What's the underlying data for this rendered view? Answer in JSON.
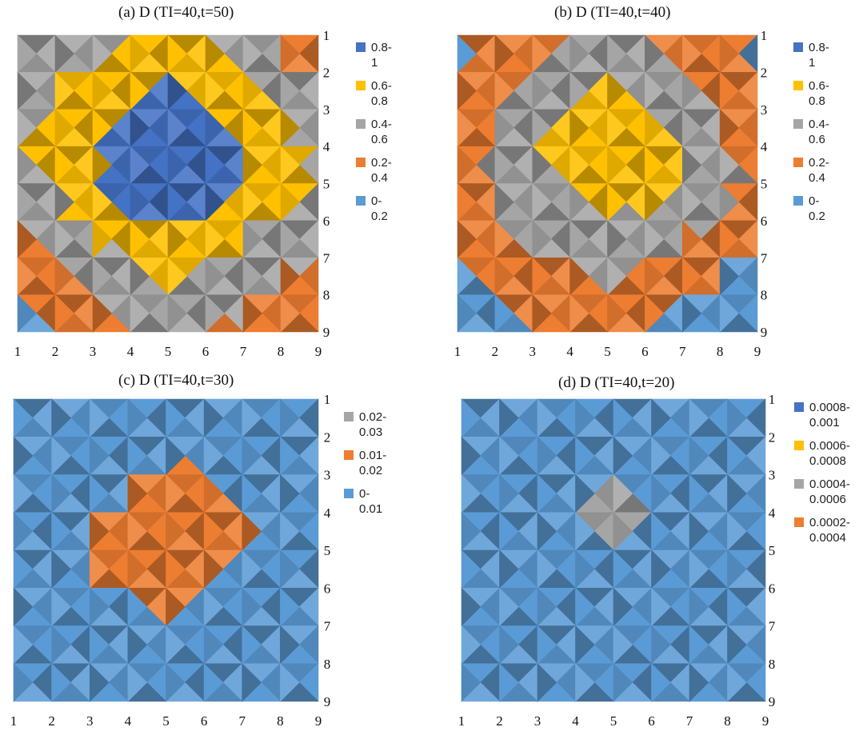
{
  "chart_data": [
    {
      "type": "heatmap",
      "title": "(a) D (TI=40,t=50)",
      "x_ticks": [
        1,
        2,
        3,
        4,
        5,
        6,
        7,
        8,
        9
      ],
      "y_ticks": [
        1,
        2,
        3,
        4,
        5,
        6,
        7,
        8,
        9
      ],
      "legend_position": "right",
      "legend": [
        {
          "label": "0.8-1",
          "color": "#4472C4"
        },
        {
          "label": "0.6-0.8",
          "color": "#FFC000"
        },
        {
          "label": "0.4-0.6",
          "color": "#A5A5A5"
        },
        {
          "label": "0.2-0.4",
          "color": "#ED7D31"
        },
        {
          "label": "0-0.2",
          "color": "#5B9BD5"
        }
      ],
      "bands": [
        {
          "range": "0-0.2",
          "color": "#5B9BD5"
        },
        {
          "range": "0.2-0.4",
          "color": "#ED7D31"
        },
        {
          "range": "0.4-0.6",
          "color": "#A5A5A5"
        },
        {
          "range": "0.6-0.8",
          "color": "#FFC000"
        },
        {
          "range": "0.8-1",
          "color": "#4472C4"
        }
      ],
      "values": [
        [
          0.35,
          0.45,
          0.45,
          0.62,
          0.7,
          0.62,
          0.45,
          0.3,
          0.25
        ],
        [
          0.42,
          0.55,
          0.7,
          0.72,
          0.75,
          0.7,
          0.62,
          0.45,
          0.3
        ],
        [
          0.5,
          0.62,
          0.72,
          0.8,
          0.88,
          0.85,
          0.72,
          0.62,
          0.45
        ],
        [
          0.6,
          0.68,
          0.78,
          0.9,
          0.95,
          0.9,
          0.8,
          0.65,
          0.55
        ],
        [
          0.5,
          0.6,
          0.75,
          0.9,
          0.95,
          0.9,
          0.85,
          0.7,
          0.6
        ],
        [
          0.42,
          0.55,
          0.65,
          0.78,
          0.85,
          0.75,
          0.65,
          0.55,
          0.45
        ],
        [
          0.3,
          0.4,
          0.52,
          0.62,
          0.7,
          0.62,
          0.55,
          0.45,
          0.4
        ],
        [
          0.2,
          0.3,
          0.4,
          0.5,
          0.55,
          0.5,
          0.45,
          0.35,
          0.3
        ],
        [
          0.1,
          0.2,
          0.3,
          0.4,
          0.45,
          0.4,
          0.35,
          0.3,
          0.25
        ]
      ]
    },
    {
      "type": "heatmap",
      "title": "(b) D (TI=40,t=40)",
      "x_ticks": [
        1,
        2,
        3,
        4,
        5,
        6,
        7,
        8,
        9
      ],
      "y_ticks": [
        1,
        2,
        3,
        4,
        5,
        6,
        7,
        8,
        9
      ],
      "legend_position": "right",
      "legend": [
        {
          "label": "0.8-1",
          "color": "#4472C4"
        },
        {
          "label": "0.6-0.8",
          "color": "#FFC000"
        },
        {
          "label": "0.4-0.6",
          "color": "#A5A5A5"
        },
        {
          "label": "0.2-0.4",
          "color": "#ED7D31"
        },
        {
          "label": "0-0.2",
          "color": "#5B9BD5"
        }
      ],
      "bands": [
        {
          "range": "0-0.2",
          "color": "#5B9BD5"
        },
        {
          "range": "0.2-0.4",
          "color": "#ED7D31"
        },
        {
          "range": "0.4-0.6",
          "color": "#A5A5A5"
        },
        {
          "range": "0.6-0.8",
          "color": "#FFC000"
        },
        {
          "range": "0.8-1",
          "color": "#4472C4"
        }
      ],
      "values": [
        [
          0.15,
          0.25,
          0.3,
          0.35,
          0.45,
          0.35,
          0.3,
          0.25,
          0.15
        ],
        [
          0.2,
          0.3,
          0.4,
          0.5,
          0.55,
          0.5,
          0.42,
          0.3,
          0.18
        ],
        [
          0.25,
          0.38,
          0.5,
          0.6,
          0.68,
          0.6,
          0.5,
          0.38,
          0.3
        ],
        [
          0.3,
          0.45,
          0.58,
          0.68,
          0.75,
          0.72,
          0.62,
          0.45,
          0.32
        ],
        [
          0.3,
          0.42,
          0.55,
          0.62,
          0.7,
          0.68,
          0.6,
          0.48,
          0.35
        ],
        [
          0.25,
          0.35,
          0.48,
          0.55,
          0.58,
          0.55,
          0.48,
          0.38,
          0.25
        ],
        [
          0.18,
          0.28,
          0.38,
          0.45,
          0.5,
          0.42,
          0.35,
          0.25,
          0.15
        ],
        [
          0.12,
          0.2,
          0.28,
          0.32,
          0.35,
          0.3,
          0.22,
          0.15,
          0.1
        ],
        [
          0.08,
          0.12,
          0.18,
          0.22,
          0.25,
          0.2,
          0.15,
          0.1,
          0.08
        ]
      ]
    },
    {
      "type": "heatmap",
      "title": "(c) D (TI=40,t=30)",
      "x_ticks": [
        1,
        2,
        3,
        4,
        5,
        6,
        7,
        8,
        9
      ],
      "y_ticks": [
        1,
        2,
        3,
        4,
        5,
        6,
        7,
        8,
        9
      ],
      "legend_position": "right",
      "legend": [
        {
          "label": "0.02-0.03",
          "color": "#A5A5A5"
        },
        {
          "label": "0.01-0.02",
          "color": "#ED7D31"
        },
        {
          "label": "0-0.01",
          "color": "#5B9BD5"
        }
      ],
      "bands": [
        {
          "range": "0-0.01",
          "color": "#5B9BD5"
        },
        {
          "range": "0.01-0.02",
          "color": "#ED7D31"
        },
        {
          "range": "0.02-0.03",
          "color": "#A5A5A5"
        }
      ],
      "values": [
        [
          0.004,
          0.002,
          0.005,
          0.006,
          0.003,
          0.005,
          0.004,
          0.003,
          0.004
        ],
        [
          0.003,
          0.004,
          0.003,
          0.004,
          0.005,
          0.006,
          0.006,
          0.005,
          0.005
        ],
        [
          0.004,
          0.005,
          0.006,
          0.008,
          0.012,
          0.01,
          0.006,
          0.005,
          0.004
        ],
        [
          0.003,
          0.004,
          0.008,
          0.013,
          0.016,
          0.015,
          0.012,
          0.006,
          0.004
        ],
        [
          0.003,
          0.005,
          0.01,
          0.018,
          0.022,
          0.017,
          0.012,
          0.005,
          0.003
        ],
        [
          0.002,
          0.004,
          0.008,
          0.012,
          0.015,
          0.012,
          0.006,
          0.003,
          0.002
        ],
        [
          0.003,
          0.004,
          0.005,
          0.007,
          0.006,
          0.005,
          0.004,
          0.004,
          0.004
        ],
        [
          0.003,
          0.003,
          0.004,
          0.004,
          0.004,
          0.004,
          0.003,
          0.004,
          0.004
        ],
        [
          0.004,
          0.004,
          0.004,
          0.004,
          0.004,
          0.004,
          0.004,
          0.004,
          0.004
        ]
      ]
    },
    {
      "type": "heatmap",
      "title": "(d) D (TI=40,t=20)",
      "x_ticks": [
        1,
        2,
        3,
        4,
        5,
        6,
        7,
        8,
        9
      ],
      "y_ticks": [
        1,
        2,
        3,
        4,
        5,
        6,
        7,
        8,
        9
      ],
      "legend_position": "right",
      "legend": [
        {
          "label": "0.0008-\n0.001",
          "color": "#4472C4"
        },
        {
          "label": "0.0006-\n0.0008",
          "color": "#FFC000"
        },
        {
          "label": "0.0004-\n0.0006",
          "color": "#A5A5A5"
        },
        {
          "label": "0.0002-\n0.0004",
          "color": "#ED7D31"
        }
      ],
      "bands": [
        {
          "range": "0-0.0002",
          "color": "#5B9BD5"
        },
        {
          "range": "0.0002-0.0004",
          "color": "#ED7D31"
        },
        {
          "range": "0.0004-0.0006",
          "color": "#A5A5A5"
        },
        {
          "range": "0.0006-0.0008",
          "color": "#FFC000"
        },
        {
          "range": "0.0008-0.001",
          "color": "#4472C4"
        }
      ],
      "values": [
        [
          0,
          0,
          0,
          0,
          0,
          0,
          0,
          0,
          0
        ],
        [
          0,
          0,
          0,
          0,
          0,
          0,
          0,
          0,
          0
        ],
        [
          0,
          0,
          0,
          0,
          0,
          0,
          0,
          0,
          0
        ],
        [
          0,
          0,
          0,
          0,
          0.001,
          0,
          0,
          0,
          0
        ],
        [
          0,
          0,
          0,
          0,
          0,
          0,
          0,
          0,
          0
        ],
        [
          0,
          0,
          0,
          0,
          0,
          0,
          0,
          0,
          0
        ],
        [
          0,
          0,
          0,
          0,
          0,
          0,
          0,
          0,
          0
        ],
        [
          0,
          0,
          0,
          0,
          0,
          0,
          0,
          0,
          0
        ],
        [
          0,
          0,
          0,
          0,
          0,
          0,
          0,
          0,
          0
        ]
      ]
    }
  ]
}
